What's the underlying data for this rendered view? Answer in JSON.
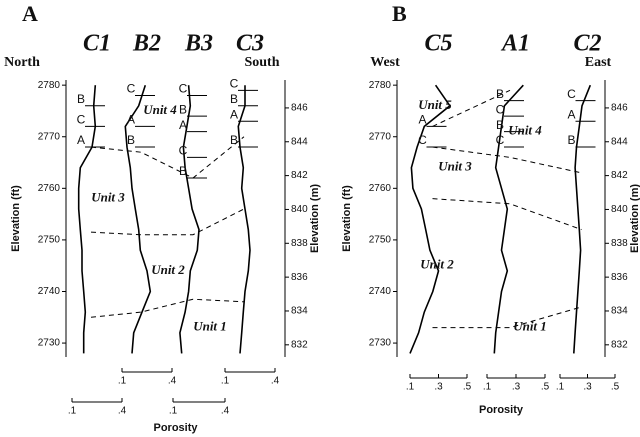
{
  "chart_data": [
    {
      "type": "well-log",
      "panel": "A",
      "left_label": "North",
      "right_label": "South",
      "y_label": "Elevation (ft)",
      "y2_label": "Elevation (m)",
      "x_label": "Porosity",
      "ylim": [
        2727.3,
        2781
      ],
      "yticks": [
        2730,
        2740,
        2750,
        2760,
        2770,
        2780
      ],
      "y2lim": [
        831.28,
        847.65
      ],
      "y2ticks": [
        832,
        834,
        836,
        838,
        840,
        842,
        844,
        846
      ],
      "elevations": [
        2728,
        2732,
        2736,
        2740,
        2744,
        2748,
        2752,
        2756,
        2760,
        2764,
        2768,
        2772,
        2776,
        2780
      ],
      "wells": [
        {
          "name": "C1",
          "xlim": [
            0.1,
            0.4
          ],
          "xticks": [
            {
              "value": 0.1,
              "label": ".1"
            },
            {
              "value": 0.4,
              "label": ".4"
            }
          ],
          "values": [
            0.17,
            0.17,
            0.18,
            0.17,
            0.16,
            0.16,
            0.15,
            0.14,
            0.14,
            0.15,
            0.22,
            0.24,
            0.23,
            0.24
          ],
          "markers": [
            {
              "label": "B",
              "elevation": 2776
            },
            {
              "label": "C",
              "elevation": 2772
            },
            {
              "label": "A",
              "elevation": 2768
            }
          ]
        },
        {
          "name": "B2",
          "xlim": [
            0.1,
            0.4
          ],
          "xticks": [
            {
              "value": 0.1,
              "label": ".1"
            },
            {
              "value": 0.4,
              "label": ".4"
            }
          ],
          "values": [
            0.16,
            0.17,
            0.22,
            0.27,
            0.25,
            0.21,
            0.2,
            0.18,
            0.16,
            0.15,
            0.13,
            0.12,
            0.2,
            0.24
          ],
          "markers": [
            {
              "label": "C",
              "elevation": 2778
            },
            {
              "label": "A",
              "elevation": 2772
            },
            {
              "label": "B",
              "elevation": 2768
            }
          ]
        },
        {
          "name": "B3",
          "xlim": [
            0.1,
            0.4
          ],
          "xticks": [
            {
              "value": 0.1,
              "label": ".1"
            },
            {
              "value": 0.4,
              "label": ".4"
            }
          ],
          "values": [
            0.15,
            0.14,
            0.17,
            0.19,
            0.2,
            0.24,
            0.25,
            0.21,
            0.19,
            0.17,
            0.16,
            0.18,
            0.2,
            0.19
          ],
          "markers": [
            {
              "label": "C",
              "elevation": 2778
            },
            {
              "label": "B",
              "elevation": 2774
            },
            {
              "label": "A",
              "elevation": 2771
            },
            {
              "label": "C",
              "elevation": 2766
            },
            {
              "label": "B",
              "elevation": 2762
            }
          ]
        },
        {
          "name": "C3",
          "xlim": [
            0.1,
            0.4
          ],
          "xticks": [
            {
              "value": 0.1,
              "label": ".1"
            },
            {
              "value": 0.4,
              "label": ".4"
            }
          ],
          "values": [
            0.19,
            0.2,
            0.21,
            0.22,
            0.24,
            0.25,
            0.24,
            0.22,
            0.2,
            0.21,
            0.19,
            0.18,
            0.22,
            0.22
          ],
          "markers": [
            {
              "label": "C",
              "elevation": 2779
            },
            {
              "label": "B",
              "elevation": 2776
            },
            {
              "label": "A",
              "elevation": 2773
            },
            {
              "label": "B",
              "elevation": 2768
            }
          ]
        }
      ],
      "boundaries": [
        [
          2768,
          2767,
          2762,
          2770
        ],
        [
          2751.5,
          2751,
          2751,
          2756
        ],
        [
          2735,
          2736,
          2738.5,
          2738
        ]
      ],
      "units": [
        {
          "label": "Unit 4",
          "elevation": 2775
        },
        {
          "label": "Unit 3",
          "elevation": 2758
        },
        {
          "label": "Unit 2",
          "elevation": 2744
        },
        {
          "label": "Unit 1",
          "elevation": 2733
        }
      ]
    },
    {
      "type": "well-log",
      "panel": "B",
      "left_label": "West",
      "right_label": "East",
      "y_label": "Elevation (ft)",
      "y2_label": "Elevation (m)",
      "x_label": "Porosity",
      "ylim": [
        2727.3,
        2781
      ],
      "yticks": [
        2730,
        2740,
        2750,
        2760,
        2770,
        2780
      ],
      "y2lim": [
        831.28,
        847.65
      ],
      "y2ticks": [
        832,
        834,
        836,
        838,
        840,
        842,
        844,
        846
      ],
      "elevations": [
        2728,
        2732,
        2736,
        2740,
        2744,
        2748,
        2752,
        2756,
        2760,
        2764,
        2768,
        2772,
        2776,
        2780
      ],
      "wells": [
        {
          "name": "C5",
          "xlim": [
            0.1,
            0.5
          ],
          "xticks": [
            {
              "value": 0.1,
              "label": ".1"
            },
            {
              "value": 0.3,
              "label": ".3"
            },
            {
              "value": 0.5,
              "label": ".5"
            }
          ],
          "values": [
            0.1,
            0.16,
            0.2,
            0.26,
            0.3,
            0.24,
            0.21,
            0.18,
            0.12,
            0.11,
            0.15,
            0.2,
            0.38,
            0.28
          ],
          "markers": [
            {
              "label": "A",
              "elevation": 2772
            },
            {
              "label": "C",
              "elevation": 2768
            }
          ]
        },
        {
          "name": "A1",
          "xlim": [
            0.1,
            0.5
          ],
          "xticks": [
            {
              "value": 0.1,
              "label": ".1"
            },
            {
              "value": 0.3,
              "label": ".3"
            },
            {
              "value": 0.5,
              "label": ".5"
            }
          ],
          "values": [
            0.15,
            0.16,
            0.18,
            0.2,
            0.24,
            0.2,
            0.22,
            0.24,
            0.2,
            0.16,
            0.18,
            0.2,
            0.22,
            0.35
          ],
          "markers": [
            {
              "label": "B",
              "elevation": 2777
            },
            {
              "label": "C",
              "elevation": 2774
            },
            {
              "label": "B",
              "elevation": 2771
            },
            {
              "label": "C",
              "elevation": 2768
            }
          ]
        },
        {
          "name": "C2",
          "xlim": [
            0.1,
            0.5
          ],
          "xticks": [
            {
              "value": 0.1,
              "label": ".1"
            },
            {
              "value": 0.3,
              "label": ".3"
            },
            {
              "value": 0.5,
              "label": ".5"
            }
          ],
          "values": [
            0.2,
            0.21,
            0.22,
            0.23,
            0.24,
            0.25,
            0.24,
            0.23,
            0.22,
            0.21,
            0.22,
            0.24,
            0.26,
            0.32
          ],
          "markers": [
            {
              "label": "C",
              "elevation": 2777
            },
            {
              "label": "A",
              "elevation": 2773
            },
            {
              "label": "B",
              "elevation": 2768
            }
          ]
        }
      ],
      "boundaries": [
        [
          2772,
          2779,
          null
        ],
        [
          2768,
          2766,
          2763
        ],
        [
          2758,
          2757,
          2752
        ],
        [
          2733,
          2733,
          2737
        ]
      ],
      "units": [
        {
          "label": "Unit 5",
          "elevation": 2776
        },
        {
          "label": "Unit 4",
          "elevation": 2771
        },
        {
          "label": "Unit 3",
          "elevation": 2764
        },
        {
          "label": "Unit 2",
          "elevation": 2745
        },
        {
          "label": "Unit 1",
          "elevation": 2733
        }
      ]
    }
  ]
}
